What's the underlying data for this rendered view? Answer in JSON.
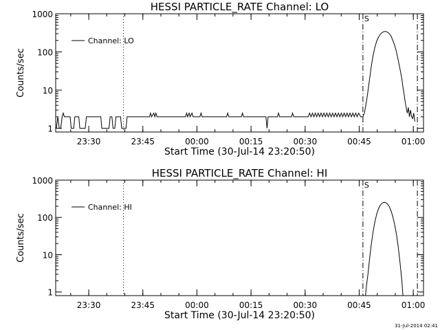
{
  "footer": {
    "timestamp": "31-Jul-2014 02:41"
  },
  "chart_data": [
    {
      "type": "line",
      "title": "HESSI PARTICLE_RATE Channel: LO",
      "xlabel": "Start Time (30-Jul-14 23:20:50)",
      "ylabel": "Counts/sec",
      "y_scale": "log",
      "ylim": [
        0.8,
        1000
      ],
      "xlim_minutes_from_start": [
        0,
        102
      ],
      "x_tick_labels": [
        "23:30",
        "23:45",
        "00:00",
        "00:15",
        "00:30",
        "00:45",
        "01:00"
      ],
      "x_tick_minutes_from_start": [
        9.17,
        24.17,
        39.17,
        54.17,
        69.17,
        84.17,
        99.17
      ],
      "y_tick_labels": [
        "1",
        "10",
        "100",
        "1000"
      ],
      "y_tick_values": [
        1,
        10,
        100,
        1000
      ],
      "legend": {
        "label": "Channel: LO",
        "placement": "top-left"
      },
      "markers": [
        {
          "minute": 18.8,
          "style": "dotted",
          "label": ""
        },
        {
          "minute": 85.2,
          "style": "dash-dot",
          "label": "S"
        },
        {
          "minute": 100.3,
          "style": "dash-dot",
          "label": ""
        }
      ],
      "series": [
        {
          "name": "Channel: LO",
          "points": [
            [
              0.2,
              1.0
            ],
            [
              0.6,
              2.0
            ],
            [
              1.0,
              1.0
            ],
            [
              1.4,
              1.0
            ],
            [
              1.8,
              2.0
            ],
            [
              2.1,
              2.5
            ],
            [
              2.4,
              2.0
            ],
            [
              4.0,
              2.0
            ],
            [
              4.3,
              1.0
            ],
            [
              5.0,
              1.0
            ],
            [
              5.3,
              2.0
            ],
            [
              6.4,
              2.0
            ],
            [
              6.7,
              1.0
            ],
            [
              8.2,
              1.0
            ],
            [
              8.5,
              2.0
            ],
            [
              12.5,
              2.0
            ],
            [
              12.8,
              1.0
            ],
            [
              14.8,
              1.0
            ],
            [
              15.1,
              2.0
            ],
            [
              15.6,
              2.0
            ],
            [
              15.9,
              1.0
            ],
            [
              16.4,
              1.0
            ],
            [
              16.7,
              2.0
            ],
            [
              18.0,
              2.0
            ],
            [
              18.3,
              1.0
            ],
            [
              19.5,
              1.0
            ],
            [
              19.8,
              2.0
            ],
            [
              26.0,
              2.0
            ],
            [
              26.3,
              2.5
            ],
            [
              26.6,
              2.0
            ],
            [
              27.2,
              2.5
            ],
            [
              27.5,
              2.0
            ],
            [
              27.8,
              2.5
            ],
            [
              28.1,
              2.0
            ],
            [
              36.0,
              2.0
            ],
            [
              36.3,
              2.5
            ],
            [
              36.6,
              2.0
            ],
            [
              37.0,
              2.5
            ],
            [
              37.3,
              2.0
            ],
            [
              37.8,
              2.5
            ],
            [
              38.1,
              2.0
            ],
            [
              40.0,
              2.0
            ],
            [
              40.3,
              2.5
            ],
            [
              40.6,
              2.0
            ],
            [
              47.4,
              2.0
            ],
            [
              47.7,
              2.5
            ],
            [
              48.0,
              2.0
            ],
            [
              51.5,
              2.0
            ],
            [
              51.8,
              2.5
            ],
            [
              52.1,
              2.0
            ],
            [
              58.3,
              2.0
            ],
            [
              58.6,
              1.0
            ],
            [
              58.9,
              2.0
            ],
            [
              61.5,
              2.0
            ],
            [
              61.8,
              2.5
            ],
            [
              62.1,
              2.0
            ],
            [
              65.4,
              2.0
            ],
            [
              65.7,
              2.5
            ],
            [
              66.0,
              2.0
            ],
            [
              70.0,
              2.0
            ],
            [
              70.4,
              2.5
            ],
            [
              70.8,
              2.0
            ],
            [
              71.2,
              2.5
            ],
            [
              71.6,
              2.0
            ],
            [
              72.0,
              2.5
            ],
            [
              72.4,
              2.0
            ],
            [
              72.8,
              2.5
            ],
            [
              73.2,
              2.0
            ],
            [
              73.6,
              2.5
            ],
            [
              74.0,
              2.0
            ],
            [
              74.4,
              2.5
            ],
            [
              74.8,
              2.0
            ],
            [
              75.2,
              2.5
            ],
            [
              75.6,
              2.0
            ],
            [
              76.0,
              2.5
            ],
            [
              76.4,
              2.0
            ],
            [
              76.8,
              2.5
            ],
            [
              77.2,
              2.0
            ],
            [
              77.6,
              2.5
            ],
            [
              78.0,
              2.0
            ],
            [
              78.4,
              2.5
            ],
            [
              78.8,
              2.0
            ],
            [
              79.2,
              2.5
            ],
            [
              79.6,
              2.0
            ],
            [
              80.0,
              2.5
            ],
            [
              80.4,
              2.0
            ],
            [
              80.8,
              2.5
            ],
            [
              81.2,
              2.0
            ],
            [
              81.6,
              2.5
            ],
            [
              82.0,
              2.0
            ],
            [
              82.4,
              2.5
            ],
            [
              82.8,
              2.0
            ],
            [
              83.2,
              2.5
            ],
            [
              83.6,
              2.0
            ],
            [
              84.0,
              2.5
            ],
            [
              84.6,
              2.0
            ],
            [
              85.2,
              2.0
            ],
            [
              85.6,
              2.5
            ],
            [
              86.0,
              4.0
            ],
            [
              86.5,
              8.0
            ],
            [
              87.0,
              18.0
            ],
            [
              87.5,
              40.0
            ],
            [
              88.0,
              80.0
            ],
            [
              88.5,
              130.0
            ],
            [
              89.0,
              190.0
            ],
            [
              89.5,
              240.0
            ],
            [
              90.0,
              290.0
            ],
            [
              90.5,
              320.0
            ],
            [
              91.0,
              340.0
            ],
            [
              91.5,
              345.0
            ],
            [
              92.0,
              330.0
            ],
            [
              92.5,
              300.0
            ],
            [
              93.0,
              260.0
            ],
            [
              93.5,
              200.0
            ],
            [
              94.0,
              150.0
            ],
            [
              94.5,
              100.0
            ],
            [
              95.0,
              60.0
            ],
            [
              95.5,
              35.0
            ],
            [
              96.0,
              20.0
            ],
            [
              96.3,
              12.0
            ],
            [
              96.6,
              8.0
            ],
            [
              96.9,
              5.0
            ],
            [
              97.2,
              3.5
            ],
            [
              97.5,
              2.5
            ],
            [
              97.8,
              3.5
            ],
            [
              98.1,
              2.0
            ],
            [
              98.4,
              3.0
            ],
            [
              98.7,
              2.0
            ],
            [
              99.0,
              1.8
            ],
            [
              99.3,
              2.5
            ],
            [
              99.6,
              1.5
            ]
          ]
        }
      ]
    },
    {
      "type": "line",
      "title": "HESSI PARTICLE_RATE Channel: HI",
      "xlabel": "Start Time (30-Jul-14 23:20:50)",
      "ylabel": "Counts/sec",
      "y_scale": "log",
      "ylim": [
        0.8,
        1000
      ],
      "xlim_minutes_from_start": [
        0,
        102
      ],
      "x_tick_labels": [
        "23:30",
        "23:45",
        "00:00",
        "00:15",
        "00:30",
        "00:45",
        "01:00"
      ],
      "x_tick_minutes_from_start": [
        9.17,
        24.17,
        39.17,
        54.17,
        69.17,
        84.17,
        99.17
      ],
      "y_tick_labels": [
        "1",
        "10",
        "100",
        "1000"
      ],
      "y_tick_values": [
        1,
        10,
        100,
        1000
      ],
      "legend": {
        "label": "Channel: HI",
        "placement": "top-left"
      },
      "markers": [
        {
          "minute": 18.8,
          "style": "dotted",
          "label": ""
        },
        {
          "minute": 85.2,
          "style": "dash-dot",
          "label": "S"
        },
        {
          "minute": 100.3,
          "style": "dash-dot",
          "label": ""
        }
      ],
      "series": [
        {
          "name": "Channel: HI",
          "points": [
            [
              85.9,
              0.8
            ],
            [
              86.2,
              1.5
            ],
            [
              86.6,
              3.0
            ],
            [
              87.0,
              7.0
            ],
            [
              87.5,
              18.0
            ],
            [
              88.0,
              40.0
            ],
            [
              88.5,
              75.0
            ],
            [
              89.0,
              120.0
            ],
            [
              89.5,
              170.0
            ],
            [
              90.0,
              210.0
            ],
            [
              90.5,
              240.0
            ],
            [
              91.0,
              255.0
            ],
            [
              91.5,
              250.0
            ],
            [
              92.0,
              230.0
            ],
            [
              92.5,
              195.0
            ],
            [
              93.0,
              150.0
            ],
            [
              93.5,
              105.0
            ],
            [
              94.0,
              65.0
            ],
            [
              94.5,
              35.0
            ],
            [
              95.0,
              16.0
            ],
            [
              95.5,
              6.0
            ],
            [
              96.0,
              2.0
            ],
            [
              96.3,
              0.8
            ]
          ]
        }
      ]
    }
  ]
}
